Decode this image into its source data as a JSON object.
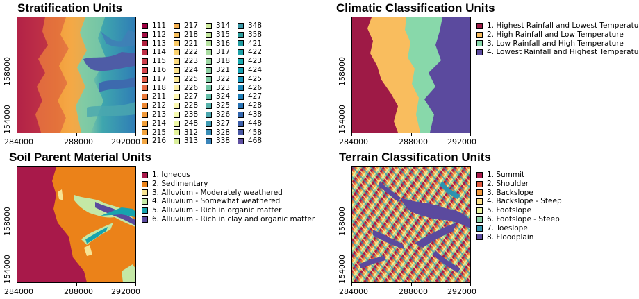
{
  "panels": {
    "strat": {
      "title": "Stratification Units",
      "x_ticks": [
        "284000",
        "288000",
        "292000"
      ],
      "y_ticks": [
        "158000",
        "154000"
      ],
      "legend_columns": [
        [
          {
            "label": "111",
            "color": "#9E0142"
          },
          {
            "label": "112",
            "color": "#A40F45"
          },
          {
            "label": "113",
            "color": "#B1213F"
          },
          {
            "label": "114",
            "color": "#BE2F47"
          },
          {
            "label": "115",
            "color": "#CB3D4B"
          },
          {
            "label": "116",
            "color": "#D7444D"
          },
          {
            "label": "117",
            "color": "#DF5B48"
          },
          {
            "label": "118",
            "color": "#E66A44"
          },
          {
            "label": "211",
            "color": "#EB7A3B"
          },
          {
            "label": "212",
            "color": "#EE8832"
          },
          {
            "label": "213",
            "color": "#F19A3A"
          },
          {
            "label": "214",
            "color": "#F1A03B"
          },
          {
            "label": "215",
            "color": "#F2A33D"
          },
          {
            "label": "216",
            "color": "#F3A744"
          }
        ],
        [
          {
            "label": "217",
            "color": "#F5B151"
          },
          {
            "label": "218",
            "color": "#F7BF5C"
          },
          {
            "label": "221",
            "color": "#F9CA67"
          },
          {
            "label": "222",
            "color": "#FBD473"
          },
          {
            "label": "223",
            "color": "#FCDC81"
          },
          {
            "label": "224",
            "color": "#FDE38D"
          },
          {
            "label": "225",
            "color": "#FEEA98"
          },
          {
            "label": "226",
            "color": "#FEF0A6"
          },
          {
            "label": "227",
            "color": "#FEF6B1"
          },
          {
            "label": "228",
            "color": "#FBF8B0"
          },
          {
            "label": "238",
            "color": "#F6FBB0"
          },
          {
            "label": "248",
            "color": "#EEF8A6"
          },
          {
            "label": "312",
            "color": "#E5F49C"
          },
          {
            "label": "313",
            "color": "#DBF09D"
          }
        ],
        [
          {
            "label": "314",
            "color": "#D0EC9E"
          },
          {
            "label": "315",
            "color": "#C4E79E"
          },
          {
            "label": "316",
            "color": "#B7E2A1"
          },
          {
            "label": "317",
            "color": "#AADDA2"
          },
          {
            "label": "318",
            "color": "#9CD7A4"
          },
          {
            "label": "321",
            "color": "#8ED1A4"
          },
          {
            "label": "322",
            "color": "#81CCA4"
          },
          {
            "label": "323",
            "color": "#72C5A5"
          },
          {
            "label": "324",
            "color": "#64BDA8"
          },
          {
            "label": "325",
            "color": "#58B2AB"
          },
          {
            "label": "326",
            "color": "#4BA7AF"
          },
          {
            "label": "327",
            "color": "#3F9BB2"
          },
          {
            "label": "328",
            "color": "#3A8FB7"
          },
          {
            "label": "338",
            "color": "#3A85BA"
          }
        ],
        [
          {
            "label": "348",
            "color": "#3A99A8"
          },
          {
            "label": "358",
            "color": "#2A9D9C"
          },
          {
            "label": "421",
            "color": "#1F9A9F"
          },
          {
            "label": "422",
            "color": "#1AA0A7"
          },
          {
            "label": "423",
            "color": "#16A8AE"
          },
          {
            "label": "424",
            "color": "#14A0B3"
          },
          {
            "label": "425",
            "color": "#1792B6"
          },
          {
            "label": "426",
            "color": "#1B86B8"
          },
          {
            "label": "427",
            "color": "#1D7DB7"
          },
          {
            "label": "428",
            "color": "#2772B4"
          },
          {
            "label": "438",
            "color": "#3266AE"
          },
          {
            "label": "448",
            "color": "#3B5DA8"
          },
          {
            "label": "458",
            "color": "#4655A3"
          },
          {
            "label": "468",
            "color": "#5E4FA2"
          }
        ]
      ]
    },
    "climate": {
      "title": "Climatic Classification Units",
      "x_ticks": [
        "284000",
        "288000",
        "292000"
      ],
      "y_ticks": [
        "158000",
        "154000"
      ],
      "legend": [
        {
          "label": "1. Highest Rainfall and Lowest Temperature",
          "color": "#9E1A46"
        },
        {
          "label": "2. High Rainfall and Low Temperature",
          "color": "#F9BD5E"
        },
        {
          "label": "3. Low Rainfall and High Temperature",
          "color": "#88D8AA"
        },
        {
          "label": "4. Lowest Rainfall and Highest Temperature",
          "color": "#5B4A9E"
        }
      ]
    },
    "soil": {
      "title": "Soil Parent Material Units",
      "x_ticks": [
        "284000",
        "288000",
        "292000"
      ],
      "y_ticks": [
        "158000",
        "154000"
      ],
      "legend": [
        {
          "label": "1. Igneous",
          "color": "#A8194A"
        },
        {
          "label": "2. Sedimentary",
          "color": "#EB8219"
        },
        {
          "label": "3. Alluvium - Moderately weathered",
          "color": "#F7E393"
        },
        {
          "label": "4. Alluvium - Somewhat weathered",
          "color": "#C4E8A6"
        },
        {
          "label": "5. Alluvium - Rich in organic matter",
          "color": "#17A3AE"
        },
        {
          "label": "6. Alluvium - Rich in clay and organic matter",
          "color": "#5B4A9E"
        }
      ]
    },
    "terrain": {
      "title": "Terrain Classification Units",
      "x_ticks": [
        "284000",
        "288000",
        "292000"
      ],
      "y_ticks": [
        "158000",
        "154000"
      ],
      "legend": [
        {
          "label": "1. Summit",
          "color": "#A8194A"
        },
        {
          "label": "2. Shoulder",
          "color": "#E05A3F"
        },
        {
          "label": "3. Backslope",
          "color": "#F39A3D"
        },
        {
          "label": "4. Backslope - Steep",
          "color": "#FCE08A"
        },
        {
          "label": "5. Footslope",
          "color": "#E9F5A2"
        },
        {
          "label": "6. Footslope - Steep",
          "color": "#88D0A4"
        },
        {
          "label": "7. Toeslope",
          "color": "#2E93B0"
        },
        {
          "label": "8. Floodplain",
          "color": "#5B4A9E"
        }
      ]
    }
  }
}
